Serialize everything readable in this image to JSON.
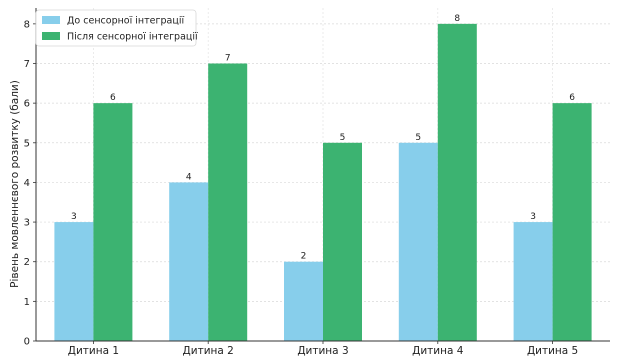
{
  "chart_data": {
    "type": "bar",
    "categories": [
      "Дитина 1",
      "Дитина 2",
      "Дитина 3",
      "Дитина 4",
      "Дитина 5"
    ],
    "series": [
      {
        "name": "До сенсорної інтеграції",
        "values": [
          3,
          4,
          2,
          5,
          3
        ],
        "color": "#87ceeb"
      },
      {
        "name": "Після сенсорної інтеграції",
        "values": [
          6,
          7,
          5,
          8,
          6
        ],
        "color": "#3cb371"
      }
    ],
    "title": "",
    "xlabel": "",
    "ylabel": "Рівень мовленнєвого розвитку (бали)",
    "ylim": [
      0,
      8.4
    ],
    "yticks": [
      0,
      1,
      2,
      3,
      4,
      5,
      6,
      7,
      8
    ],
    "grid": true,
    "legend_position": "top-left",
    "data_labels": true
  }
}
